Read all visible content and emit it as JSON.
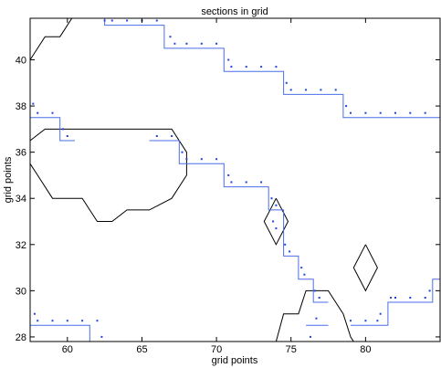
{
  "chart_data": {
    "type": "line",
    "title": "sections in grid",
    "xlabel": "grid points",
    "ylabel": "grid points",
    "xlim": [
      57.5,
      85
    ],
    "ylim": [
      27.8,
      41.8
    ],
    "xticks": [
      60,
      65,
      70,
      75,
      80
    ],
    "yticks": [
      28,
      30,
      32,
      34,
      36,
      38,
      40
    ],
    "colors": {
      "contour": "#000000",
      "section": "#4a6ee8",
      "points": "#2244dd"
    },
    "series": [
      {
        "kind": "contour",
        "polylines": [
          [
            [
              57.5,
              40
            ],
            [
              58.5,
              41
            ],
            [
              59.5,
              41
            ],
            [
              60.5,
              42
            ]
          ],
          [
            [
              57.5,
              36.5
            ],
            [
              58.5,
              37
            ],
            [
              67,
              37
            ],
            [
              68,
              36
            ],
            [
              68,
              35
            ],
            [
              67,
              34
            ],
            [
              65.5,
              33.5
            ],
            [
              64,
              33.5
            ],
            [
              63,
              33
            ],
            [
              62,
              33
            ],
            [
              61,
              34
            ],
            [
              59,
              34
            ],
            [
              58,
              35
            ],
            [
              57.5,
              35.5
            ]
          ],
          [
            [
              74,
              34
            ],
            [
              74.8,
              33
            ],
            [
              74,
              32
            ],
            [
              73.2,
              33
            ],
            [
              74,
              34
            ]
          ],
          [
            [
              80,
              32
            ],
            [
              80.8,
              31
            ],
            [
              80,
              30
            ],
            [
              79.2,
              31
            ],
            [
              80,
              32
            ]
          ],
          [
            [
              74,
              27.8
            ],
            [
              74.5,
              29
            ],
            [
              75.5,
              29
            ],
            [
              76,
              30
            ],
            [
              77.5,
              30
            ],
            [
              78.5,
              29
            ],
            [
              79,
              28
            ],
            [
              79.2,
              27.8
            ]
          ]
        ]
      },
      {
        "kind": "section",
        "polylines": [
          [
            [
              62.5,
              41.8
            ],
            [
              62.5,
              41.5
            ],
            [
              66.5,
              41.5
            ],
            [
              66.5,
              40.5
            ],
            [
              70.5,
              40.5
            ],
            [
              70.5,
              39.5
            ],
            [
              74.5,
              39.5
            ],
            [
              74.5,
              38.5
            ],
            [
              78.5,
              38.5
            ],
            [
              78.5,
              37.5
            ],
            [
              85,
              37.5
            ]
          ],
          [
            [
              57.5,
              37.5
            ],
            [
              59.5,
              37.5
            ],
            [
              59.5,
              36.5
            ],
            [
              60.5,
              36.5
            ]
          ],
          [
            [
              65.5,
              36.5
            ],
            [
              67.5,
              36.5
            ],
            [
              67.5,
              35.5
            ],
            [
              70.5,
              35.5
            ],
            [
              70.5,
              34.5
            ],
            [
              73.5,
              34.5
            ],
            [
              73.5,
              33.5
            ],
            [
              74.5,
              33.5
            ],
            [
              74.5,
              31.5
            ],
            [
              75.5,
              31.5
            ],
            [
              75.5,
              30.5
            ],
            [
              76.5,
              30.5
            ],
            [
              76.5,
              29.5
            ],
            [
              77.5,
              29.5
            ]
          ],
          [
            [
              57.5,
              28.5
            ],
            [
              61.5,
              28.5
            ],
            [
              61.5,
              27.8
            ]
          ],
          [
            [
              76,
              28.5
            ],
            [
              77.5,
              28.5
            ]
          ],
          [
            [
              79,
              28.5
            ],
            [
              81.5,
              28.5
            ],
            [
              81.5,
              29.5
            ],
            [
              84.5,
              29.5
            ],
            [
              84.5,
              30.5
            ],
            [
              85,
              30.5
            ]
          ]
        ]
      },
      {
        "kind": "points",
        "points": [
          [
            63,
            41.7
          ],
          [
            64,
            41.7
          ],
          [
            65,
            41.7
          ],
          [
            66,
            41.7
          ],
          [
            62.5,
            41.7
          ],
          [
            66.9,
            41
          ],
          [
            67.2,
            40.7
          ],
          [
            68,
            40.7
          ],
          [
            69,
            40.7
          ],
          [
            70,
            40.7
          ],
          [
            70.8,
            40
          ],
          [
            71,
            39.7
          ],
          [
            72,
            39.7
          ],
          [
            73,
            39.7
          ],
          [
            74,
            39.7
          ],
          [
            74.7,
            39
          ],
          [
            75,
            38.7
          ],
          [
            76,
            38.7
          ],
          [
            77,
            38.7
          ],
          [
            78,
            38.7
          ],
          [
            78.7,
            38
          ],
          [
            79,
            37.7
          ],
          [
            80,
            37.7
          ],
          [
            81,
            37.7
          ],
          [
            82,
            37.7
          ],
          [
            83,
            37.7
          ],
          [
            84,
            37.7
          ],
          [
            57.7,
            38.1
          ],
          [
            58,
            37.7
          ],
          [
            59,
            37.7
          ],
          [
            59.7,
            37
          ],
          [
            60,
            36.7
          ],
          [
            66,
            36.7
          ],
          [
            67,
            36.7
          ],
          [
            67.7,
            36
          ],
          [
            68,
            35.7
          ],
          [
            69,
            35.7
          ],
          [
            70,
            35.7
          ],
          [
            70.8,
            35
          ],
          [
            71,
            34.7
          ],
          [
            72,
            34.7
          ],
          [
            73,
            34.7
          ],
          [
            73.7,
            34
          ],
          [
            74,
            33.7
          ],
          [
            73.8,
            33
          ],
          [
            74,
            32.7
          ],
          [
            74.6,
            32
          ],
          [
            74.9,
            31.7
          ],
          [
            75.7,
            31
          ],
          [
            75.9,
            30.7
          ],
          [
            76.6,
            30
          ],
          [
            76.9,
            29.7
          ],
          [
            57.8,
            29
          ],
          [
            58,
            28.7
          ],
          [
            59,
            28.7
          ],
          [
            60,
            28.7
          ],
          [
            61,
            28.7
          ],
          [
            62,
            28.7
          ],
          [
            62.3,
            28
          ],
          [
            76.7,
            28.8
          ],
          [
            76.3,
            28
          ],
          [
            79,
            28.7
          ],
          [
            80,
            28.7
          ],
          [
            80.8,
            28.7
          ],
          [
            81,
            29
          ],
          [
            81.7,
            29.7
          ],
          [
            82,
            29.7
          ],
          [
            83,
            29.7
          ],
          [
            84,
            29.7
          ],
          [
            84.3,
            30
          ]
        ]
      }
    ],
    "grid": false,
    "legend": "none"
  }
}
